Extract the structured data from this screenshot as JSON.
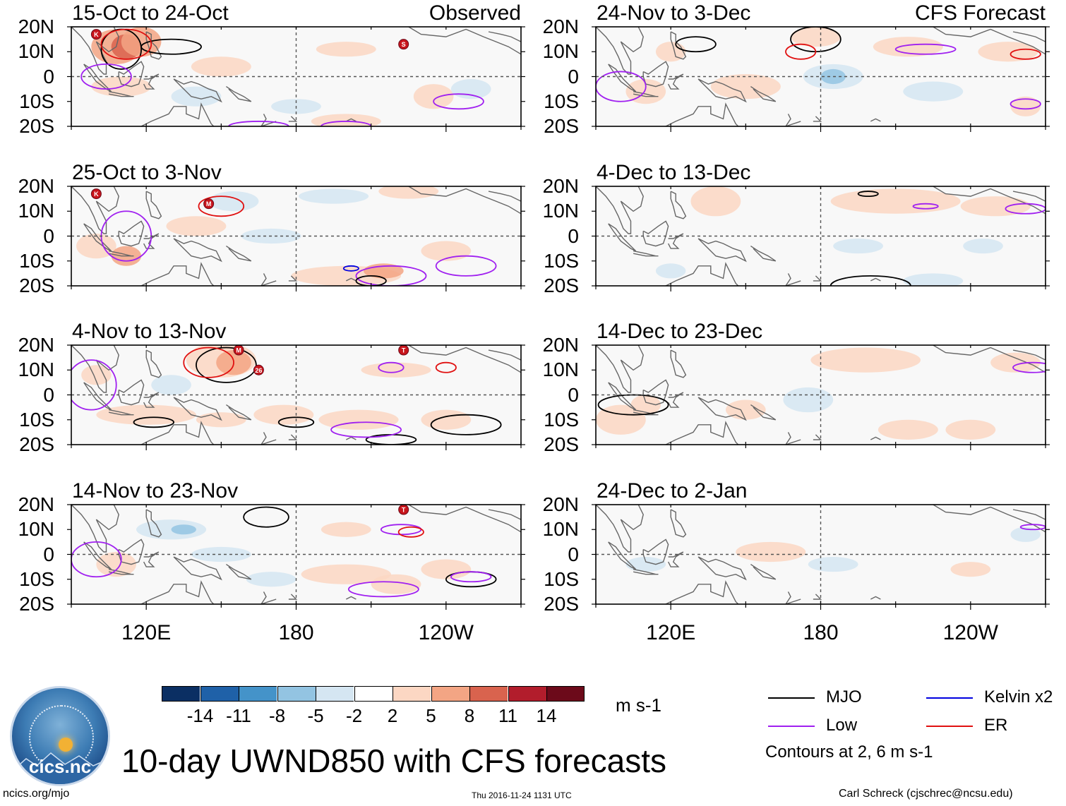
{
  "chart_data": {
    "type": "heatmap",
    "title": "10-day UWND850 with CFS forecasts",
    "variable": "850-hPa zonal wind anomaly",
    "units": "m s-1",
    "x_axis": {
      "range": [
        "90E",
        "180",
        "90W"
      ],
      "ticks": [
        "120E",
        "180",
        "120W"
      ]
    },
    "y_axis": {
      "range": [
        "20S",
        "20N"
      ],
      "ticks": [
        "20N",
        "10N",
        "0",
        "10S",
        "20S"
      ]
    },
    "column_labels": {
      "left": "Observed",
      "right": "CFS Forecast"
    },
    "panels": [
      {
        "column": "left",
        "period": "15-Oct to 24-Oct",
        "label": "Observed",
        "markers": [
          {
            "symbol": "K",
            "lon": 100,
            "lat": 17
          },
          {
            "symbol": "S",
            "lon": 223,
            "lat": 13
          }
        ]
      },
      {
        "column": "left",
        "period": "25-Oct to 3-Nov",
        "markers": [
          {
            "symbol": "K",
            "lon": 100,
            "lat": 17
          },
          {
            "symbol": "M",
            "lon": 145,
            "lat": 13
          }
        ]
      },
      {
        "column": "left",
        "period": "4-Nov to 13-Nov",
        "markers": [
          {
            "symbol": "M",
            "lon": 157,
            "lat": 18
          },
          {
            "symbol": "26",
            "lon": 165,
            "lat": 10
          },
          {
            "symbol": "T",
            "lon": 223,
            "lat": 18
          }
        ]
      },
      {
        "column": "left",
        "period": "14-Nov to 23-Nov",
        "markers": [
          {
            "symbol": "T",
            "lon": 223,
            "lat": 18
          }
        ]
      },
      {
        "column": "right",
        "period": "24-Nov to 3-Dec",
        "label": "CFS Forecast",
        "markers": []
      },
      {
        "column": "right",
        "period": "4-Dec to 13-Dec",
        "markers": []
      },
      {
        "column": "right",
        "period": "14-Dec to 23-Dec",
        "markers": []
      },
      {
        "column": "right",
        "period": "24-Dec to 2-Jan",
        "markers": []
      }
    ],
    "colorbar": {
      "levels": [
        "-14",
        "-11",
        "-8",
        "-5",
        "-2",
        "2",
        "5",
        "8",
        "11",
        "14"
      ],
      "colors": [
        "#0b2f63",
        "#1f61a8",
        "#4493c9",
        "#93c4e2",
        "#d5e6f2",
        "#ffffff",
        "#fcd7c3",
        "#f3a584",
        "#d9634e",
        "#b21d2c",
        "#6c0a1a"
      ],
      "units": "m s-1"
    },
    "legend": [
      {
        "label": "MJO",
        "color": "#000000"
      },
      {
        "label": "Kelvin x2",
        "color": "#0000e0"
      },
      {
        "label": "Low",
        "color": "#a020f0"
      },
      {
        "label": "ER",
        "color": "#e01010"
      }
    ],
    "contour_note": "Contours at 2, 6 m s-1"
  },
  "footer": {
    "site": "ncics.org/mjo",
    "timestamp": "Thu 2016-11-24 1131 UTC",
    "credit": "Carl Schreck (cjschrec@ncsu.edu)",
    "logo_text": "cics.nc"
  }
}
